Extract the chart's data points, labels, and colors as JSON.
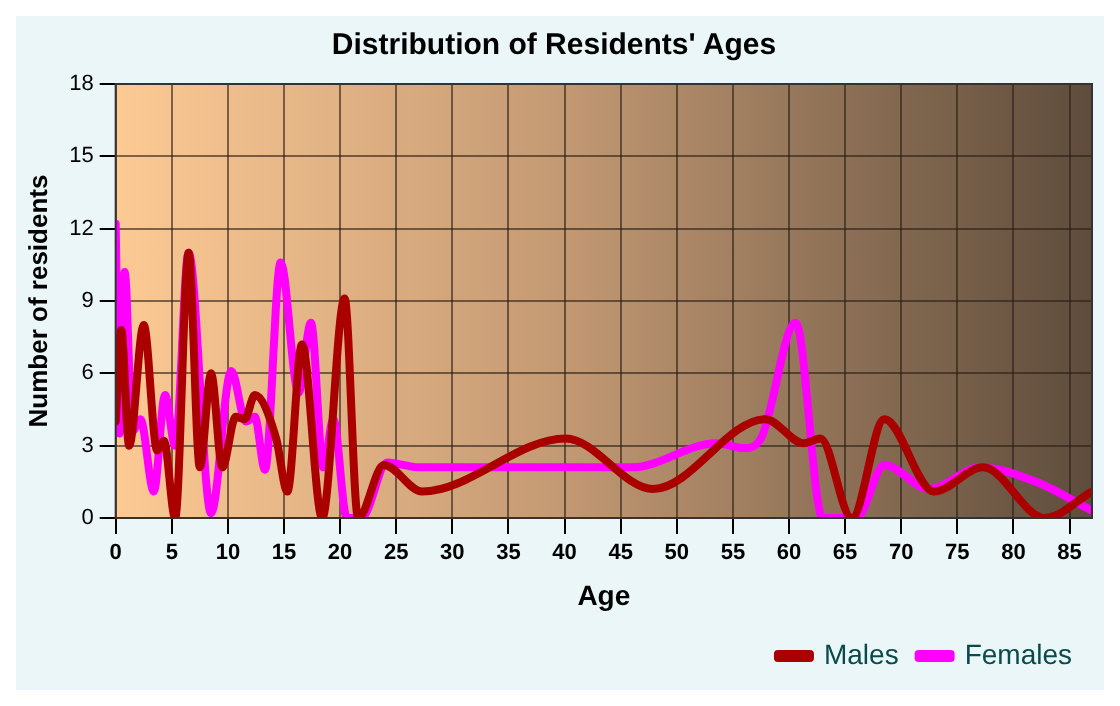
{
  "chart_data": {
    "type": "line",
    "title": "Distribution of Residents' Ages",
    "xlabel": "Age",
    "ylabel": "Number of residents",
    "xlim": [
      0,
      87
    ],
    "xticks": [
      0,
      5,
      10,
      15,
      20,
      25,
      30,
      35,
      40,
      45,
      50,
      55,
      60,
      65,
      70,
      75,
      80,
      85
    ],
    "ylim": [
      0,
      18
    ],
    "yticks": [
      0,
      3,
      6,
      9,
      12,
      15,
      18
    ],
    "grid": true,
    "legend": "bottom right",
    "marker": "none",
    "line_style": "solid",
    "series": [
      {
        "name": "Males",
        "color": "#aa0000",
        "x": [
          0,
          0.5,
          1.2,
          2.5,
          3.7,
          4.3,
          5.3,
          6.5,
          7.5,
          8.5,
          9.5,
          10.7,
          11.5,
          12.4,
          14.3,
          15.3,
          16.6,
          18.4,
          20.4,
          21.6,
          23.9,
          27.3,
          40.1,
          47.9,
          57.9,
          61.3,
          62.8,
          65.6,
          68.5,
          72.9,
          77.3,
          82.8,
          87
        ],
        "values": [
          4,
          7.8,
          3,
          8,
          2.8,
          3.2,
          0,
          11,
          2.1,
          6,
          2.1,
          4.2,
          4.1,
          5.1,
          3.3,
          1.1,
          7.2,
          0,
          9.1,
          0,
          2.2,
          1.1,
          3.3,
          1.2,
          4.1,
          3.1,
          3.3,
          0,
          4.1,
          1.1,
          2.1,
          0,
          1.1
        ]
      },
      {
        "name": "Females",
        "color": "#ff00ff",
        "x": [
          0,
          0.35,
          0.8,
          1.5,
          2.2,
          3.4,
          4.4,
          5.3,
          6.5,
          7.6,
          8.5,
          10.3,
          11.6,
          12.4,
          13.3,
          14.7,
          16.3,
          17.4,
          18.5,
          19.4,
          20.6,
          21.9,
          24.2,
          27,
          46,
          53.5,
          56,
          57.5,
          60.6,
          63,
          66,
          68.5,
          72.5,
          77,
          82,
          87
        ],
        "values": [
          12.2,
          3.5,
          10.2,
          3.6,
          4.1,
          1.1,
          5.1,
          3,
          11,
          null,
          0.2,
          6.1,
          4,
          4.2,
          2,
          10.6,
          5.2,
          8.1,
          2.1,
          4.1,
          0,
          0,
          2.3,
          2.1,
          2.1,
          3.1,
          2.9,
          3.3,
          8.1,
          0,
          0,
          2.2,
          1.2,
          2.1,
          1.5,
          0.3
        ]
      }
    ]
  }
}
